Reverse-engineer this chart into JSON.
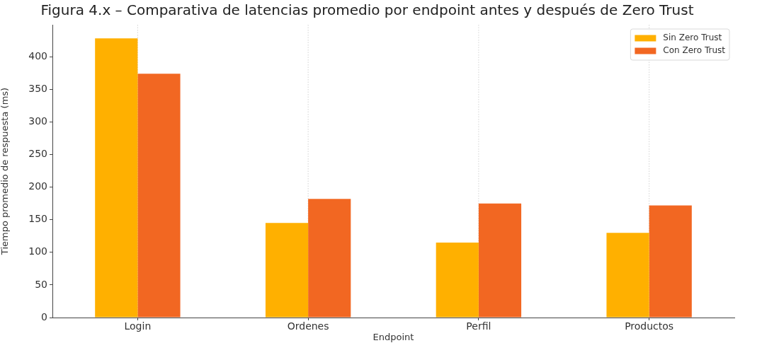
{
  "chart_data": {
    "type": "bar",
    "title": "Figura 4.x – Comparativa de latencias promedio por endpoint antes y después de Zero Trust",
    "xlabel": "Endpoint",
    "ylabel": "Tiempo promedio de respuesta (ms)",
    "categories": [
      "Login",
      "Ordenes",
      "Perfil",
      "Productos"
    ],
    "series": [
      {
        "name": "Sin Zero Trust",
        "color": "#ffb000",
        "values": [
          428,
          145,
          115,
          130
        ]
      },
      {
        "name": "Con Zero Trust",
        "color": "#f26722",
        "values": [
          374,
          182,
          175,
          172
        ]
      }
    ],
    "ylim": [
      0,
      449
    ],
    "yticks": [
      0,
      50,
      100,
      150,
      200,
      250,
      300,
      350,
      400
    ],
    "grid": "x",
    "legend": "top right"
  }
}
